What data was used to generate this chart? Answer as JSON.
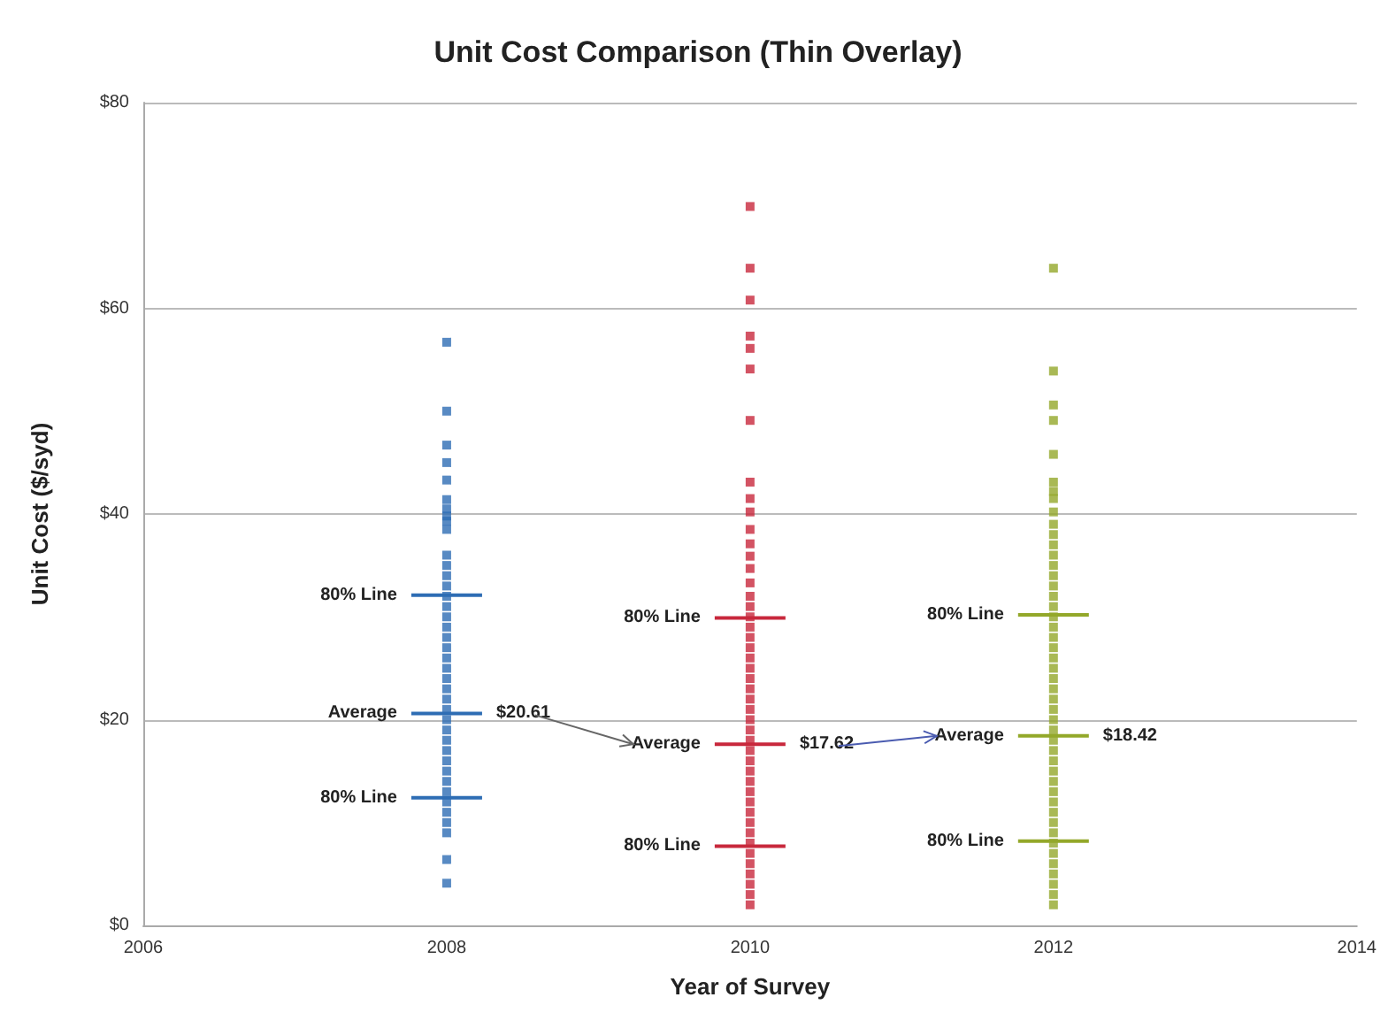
{
  "chart_data": {
    "type": "scatter",
    "title": "Unit Cost Comparison (Thin Overlay)",
    "xlabel": "Year of Survey",
    "ylabel": "Unit Cost ($/syd)",
    "xlim": [
      2006,
      2014
    ],
    "xticks": [
      2006,
      2008,
      2010,
      2012,
      2014
    ],
    "ylim": [
      0,
      80
    ],
    "yticks": [
      {
        "value": 0,
        "label": "$0"
      },
      {
        "value": 20,
        "label": "$20"
      },
      {
        "value": 40,
        "label": "$40"
      },
      {
        "value": 60,
        "label": "$60"
      },
      {
        "value": 80,
        "label": "$80"
      }
    ],
    "grid": "y",
    "marker": "square",
    "series": [
      {
        "color": "#2e6db4",
        "x": [
          2008,
          2008,
          2008,
          2008,
          2008,
          2008,
          2008,
          2008,
          2008,
          2008,
          2008,
          2008,
          2008,
          2008,
          2008,
          2008,
          2008,
          2008,
          2008,
          2008,
          2008,
          2008,
          2008,
          2008,
          2008,
          2008,
          2008,
          2008,
          2008,
          2008,
          2008,
          2008,
          2008,
          2008,
          2008,
          2008,
          2008,
          2008,
          2008,
          2008
        ],
        "values": [
          56.7,
          50,
          46.7,
          45,
          43.3,
          41.4,
          40.5,
          39.8,
          39.3,
          38.5,
          36,
          35,
          34,
          33,
          32,
          31,
          30,
          29,
          28,
          27,
          26,
          25,
          24,
          23,
          22,
          21,
          20,
          19,
          18,
          17,
          16,
          15,
          14,
          13,
          12,
          11,
          10,
          9,
          6.4,
          4.1
        ]
      },
      {
        "color": "#c8283c",
        "x": [
          2010,
          2010,
          2010,
          2010,
          2010,
          2010,
          2010,
          2010,
          2010,
          2010,
          2010,
          2010,
          2010,
          2010,
          2010,
          2010,
          2010,
          2010,
          2010,
          2010,
          2010,
          2010,
          2010,
          2010,
          2010,
          2010,
          2010,
          2010,
          2010,
          2010,
          2010,
          2010,
          2010,
          2010,
          2010,
          2010,
          2010,
          2010,
          2010,
          2010,
          2010,
          2010,
          2010,
          2010,
          2010,
          2010
        ],
        "values": [
          69.9,
          63.9,
          60.8,
          57.3,
          56.1,
          54.1,
          49.1,
          43.1,
          41.5,
          40.2,
          38.5,
          37.1,
          35.9,
          34.7,
          33.3,
          32,
          31,
          30,
          29,
          28,
          27,
          26,
          25,
          24,
          23,
          22,
          21,
          20,
          19,
          18,
          17,
          16,
          15,
          14,
          13,
          12,
          11,
          10,
          9,
          8,
          7,
          6,
          5,
          4,
          3,
          2
        ]
      },
      {
        "color": "#93a82a",
        "x": [
          2012,
          2012,
          2012,
          2012,
          2012,
          2012,
          2012,
          2012,
          2012,
          2012,
          2012,
          2012,
          2012,
          2012,
          2012,
          2012,
          2012,
          2012,
          2012,
          2012,
          2012,
          2012,
          2012,
          2012,
          2012,
          2012,
          2012,
          2012,
          2012,
          2012,
          2012,
          2012,
          2012,
          2012,
          2012,
          2012,
          2012,
          2012,
          2012,
          2012,
          2012,
          2012,
          2012,
          2012,
          2012,
          2012,
          2012
        ],
        "values": [
          63.9,
          53.9,
          50.6,
          49.1,
          45.8,
          43.1,
          42.2,
          41.5,
          40.2,
          39,
          38,
          37,
          36,
          35,
          34,
          33,
          32,
          31,
          30,
          29,
          28,
          27,
          26,
          25,
          24,
          23,
          22,
          21,
          20,
          19,
          18,
          17,
          16,
          15,
          14,
          13,
          12,
          11,
          10,
          9,
          8,
          7,
          6,
          5,
          4,
          3,
          2
        ]
      }
    ],
    "annotations": [
      {
        "text": "80% Line",
        "x": 2008,
        "y": 32.1
      },
      {
        "text": "Average",
        "x": 2008,
        "y": 20.61
      },
      {
        "text": "$20.61",
        "x": 2008,
        "y": 20.61
      },
      {
        "text": "80% Line",
        "x": 2008,
        "y": 12.4
      },
      {
        "text": "80% Line",
        "x": 2010,
        "y": 29.9
      },
      {
        "text": "Average",
        "x": 2010,
        "y": 17.62
      },
      {
        "text": "$17.62",
        "x": 2010,
        "y": 17.62
      },
      {
        "text": "80% Line",
        "x": 2010,
        "y": 7.7
      },
      {
        "text": "80% Line",
        "x": 2012,
        "y": 30.2
      },
      {
        "text": "Average",
        "x": 2012,
        "y": 18.42
      },
      {
        "text": "$18.42",
        "x": 2012,
        "y": 18.42
      },
      {
        "text": "80% Line",
        "x": 2012,
        "y": 8.2
      }
    ]
  }
}
